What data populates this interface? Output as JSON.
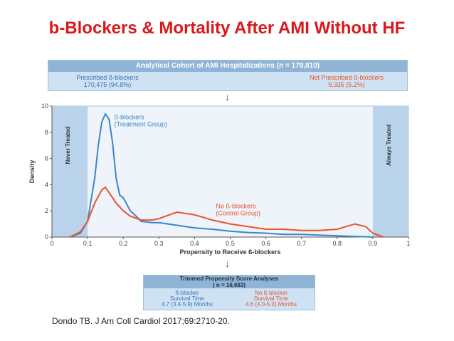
{
  "slide": {
    "title": "b-Blockers & Mortality After AMI Without HF",
    "citation": "Dondo TB.  J Am Coll Cardiol 2017;69:2710-20."
  },
  "cohort": {
    "header": "Analytical Cohort of AMI Hospitalizations (n = 179,810)",
    "prescribed_label": "Prescribed ß-blockers",
    "prescribed_value": "170,475 (94.8%)",
    "not_prescribed_label": "Not Prescribed ß-blockers",
    "not_prescribed_value": "9,335 (5.2%)"
  },
  "trimmed": {
    "header_line1": "Trimmed Propensity Score Analyses",
    "header_line2": "( n = 16,683)",
    "left_line1": "ß-blocker",
    "left_line2": "Survival Time",
    "left_line3": "4.7 (3.4-5.9) Months",
    "right_line1": "No ß-blocker",
    "right_line2": "Survival Time",
    "right_line3": "4.6 (4.0-5.2) Months"
  },
  "colors": {
    "title": "#d7191c",
    "blue_series": "#3d85c6",
    "red_series": "#e8542c",
    "box_fill": "#cfe2f3",
    "box_header": "#8fb4d6"
  },
  "chart_data": {
    "type": "line",
    "xlabel": "Propensity to Receive ß-blockers",
    "ylabel": "Density",
    "xlim": [
      0,
      1
    ],
    "ylim": [
      0,
      10
    ],
    "x_ticks": [
      0,
      0.1,
      0.2,
      0.3,
      0.4,
      0.5,
      0.6,
      0.7,
      0.8,
      0.9,
      1
    ],
    "y_ticks": [
      0,
      2,
      4,
      6,
      8,
      10
    ],
    "bands": [
      {
        "label": "Never Treated",
        "from": 0,
        "to": 0.1
      },
      {
        "label": "Always Treated",
        "from": 0.9,
        "to": 1
      }
    ],
    "series": [
      {
        "name": "ß-blockers",
        "label_line1": "ß-blockers",
        "label_line2": "(Treatment Group)",
        "color": "#3d85c6",
        "x": [
          0.05,
          0.08,
          0.1,
          0.12,
          0.13,
          0.14,
          0.15,
          0.16,
          0.17,
          0.18,
          0.19,
          0.2,
          0.22,
          0.24,
          0.25,
          0.28,
          0.3,
          0.35,
          0.4,
          0.45,
          0.5,
          0.55,
          0.6,
          0.65,
          0.7,
          0.75,
          0.8,
          0.85,
          0.9
        ],
        "y": [
          0.0,
          0.3,
          1.2,
          4.5,
          7.0,
          8.8,
          9.4,
          9.0,
          7.2,
          4.5,
          3.2,
          3.0,
          2.0,
          1.5,
          1.2,
          1.1,
          1.1,
          0.9,
          0.7,
          0.6,
          0.45,
          0.35,
          0.3,
          0.2,
          0.2,
          0.15,
          0.1,
          0.05,
          0.0
        ]
      },
      {
        "name": "No ß-blockers",
        "label_line1": "No ß-blockers",
        "label_line2": "(Control Group)",
        "color": "#e8542c",
        "x": [
          0.05,
          0.08,
          0.1,
          0.12,
          0.14,
          0.15,
          0.16,
          0.18,
          0.2,
          0.22,
          0.25,
          0.28,
          0.3,
          0.35,
          0.4,
          0.45,
          0.5,
          0.55,
          0.6,
          0.65,
          0.7,
          0.75,
          0.8,
          0.85,
          0.88,
          0.9,
          0.93
        ],
        "y": [
          0.0,
          0.4,
          1.2,
          2.6,
          3.6,
          3.8,
          3.4,
          2.6,
          2.0,
          1.6,
          1.3,
          1.3,
          1.4,
          1.9,
          1.7,
          1.3,
          1.0,
          0.8,
          0.6,
          0.6,
          0.5,
          0.5,
          0.6,
          1.0,
          0.8,
          0.3,
          0.0
        ]
      }
    ]
  }
}
